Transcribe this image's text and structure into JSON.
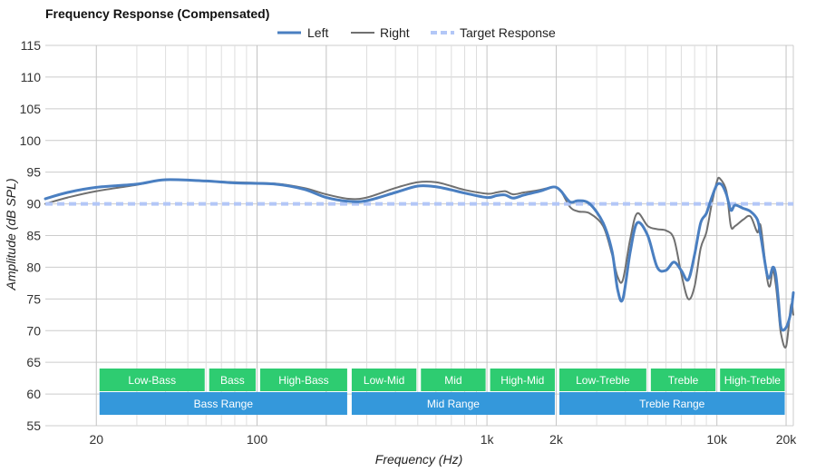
{
  "chart_data": {
    "type": "line",
    "title": "Frequency Response (Compensated)",
    "xlabel": "Frequency (Hz)",
    "ylabel": "Amplitude (dB SPL)",
    "x_scale": "log",
    "xlim": [
      12,
      21500
    ],
    "ylim": [
      55,
      115
    ],
    "grid": true,
    "legend_position": "top-center",
    "y_ticks": [
      55,
      60,
      65,
      70,
      75,
      80,
      85,
      90,
      95,
      100,
      105,
      110,
      115
    ],
    "x_ticks": [
      {
        "value": 20,
        "label": "20"
      },
      {
        "value": 100,
        "label": "100"
      },
      {
        "value": 1000,
        "label": "1k"
      },
      {
        "value": 2000,
        "label": "2k"
      },
      {
        "value": 10000,
        "label": "10k"
      },
      {
        "value": 20000,
        "label": "20k"
      }
    ],
    "series": [
      {
        "name": "Left",
        "color": "#4a7fc1",
        "style": "solid",
        "points": [
          [
            12,
            90.8
          ],
          [
            15,
            91.8
          ],
          [
            20,
            92.6
          ],
          [
            30,
            93.1
          ],
          [
            40,
            93.8
          ],
          [
            60,
            93.6
          ],
          [
            80,
            93.3
          ],
          [
            120,
            93.1
          ],
          [
            160,
            92.3
          ],
          [
            200,
            91.0
          ],
          [
            250,
            90.4
          ],
          [
            300,
            90.5
          ],
          [
            400,
            91.8
          ],
          [
            500,
            92.8
          ],
          [
            600,
            92.7
          ],
          [
            700,
            92.2
          ],
          [
            800,
            91.7
          ],
          [
            1000,
            91.0
          ],
          [
            1100,
            91.3
          ],
          [
            1200,
            91.4
          ],
          [
            1300,
            90.9
          ],
          [
            1450,
            91.4
          ],
          [
            1700,
            92.0
          ],
          [
            1900,
            92.6
          ],
          [
            2000,
            92.6
          ],
          [
            2100,
            92.0
          ],
          [
            2300,
            90.3
          ],
          [
            2500,
            90.5
          ],
          [
            2800,
            90.0
          ],
          [
            3200,
            87.0
          ],
          [
            3500,
            82.5
          ],
          [
            3700,
            76.5
          ],
          [
            3900,
            75.0
          ],
          [
            4200,
            82.5
          ],
          [
            4500,
            87.0
          ],
          [
            5000,
            85.0
          ],
          [
            5500,
            80.0
          ],
          [
            6000,
            79.5
          ],
          [
            6500,
            80.8
          ],
          [
            7000,
            79.5
          ],
          [
            7500,
            78.0
          ],
          [
            8000,
            82.0
          ],
          [
            8500,
            87.0
          ],
          [
            9000,
            88.5
          ],
          [
            9500,
            91.0
          ],
          [
            10000,
            93.0
          ],
          [
            10500,
            93.0
          ],
          [
            11000,
            91.5
          ],
          [
            11500,
            89.0
          ],
          [
            12000,
            89.8
          ],
          [
            13000,
            89.3
          ],
          [
            14000,
            88.8
          ],
          [
            15000,
            87.5
          ],
          [
            15500,
            85.0
          ],
          [
            16500,
            79.0
          ],
          [
            17000,
            78.5
          ],
          [
            17500,
            80.0
          ],
          [
            18000,
            79.0
          ],
          [
            18500,
            75.0
          ],
          [
            19000,
            70.5
          ],
          [
            20000,
            70.5
          ],
          [
            21000,
            73.0
          ],
          [
            21500,
            76.0
          ]
        ]
      },
      {
        "name": "Right",
        "color": "#707070",
        "style": "solid",
        "points": [
          [
            12,
            90.0
          ],
          [
            15,
            91.0
          ],
          [
            20,
            92.0
          ],
          [
            30,
            93.0
          ],
          [
            40,
            93.8
          ],
          [
            60,
            93.6
          ],
          [
            80,
            93.4
          ],
          [
            120,
            93.2
          ],
          [
            160,
            92.5
          ],
          [
            200,
            91.5
          ],
          [
            250,
            90.8
          ],
          [
            300,
            91.0
          ],
          [
            400,
            92.5
          ],
          [
            500,
            93.4
          ],
          [
            600,
            93.4
          ],
          [
            700,
            92.8
          ],
          [
            800,
            92.2
          ],
          [
            1000,
            91.6
          ],
          [
            1100,
            91.8
          ],
          [
            1200,
            92.0
          ],
          [
            1300,
            91.5
          ],
          [
            1450,
            91.8
          ],
          [
            1700,
            92.2
          ],
          [
            1900,
            92.6
          ],
          [
            2000,
            92.6
          ],
          [
            2100,
            92.0
          ],
          [
            2300,
            89.5
          ],
          [
            2500,
            88.8
          ],
          [
            2800,
            88.5
          ],
          [
            3200,
            86.5
          ],
          [
            3500,
            82.0
          ],
          [
            3700,
            78.5
          ],
          [
            3900,
            78.0
          ],
          [
            4200,
            84.5
          ],
          [
            4500,
            88.5
          ],
          [
            5000,
            86.5
          ],
          [
            5500,
            86.0
          ],
          [
            6000,
            85.8
          ],
          [
            6500,
            84.5
          ],
          [
            7000,
            79.0
          ],
          [
            7500,
            75.0
          ],
          [
            8000,
            77.0
          ],
          [
            8500,
            83.0
          ],
          [
            9000,
            85.5
          ],
          [
            9500,
            90.0
          ],
          [
            10000,
            93.5
          ],
          [
            10300,
            94.0
          ],
          [
            11000,
            92.0
          ],
          [
            11500,
            86.5
          ],
          [
            12000,
            86.5
          ],
          [
            13000,
            87.5
          ],
          [
            14000,
            88.0
          ],
          [
            15000,
            85.5
          ],
          [
            15500,
            86.5
          ],
          [
            16500,
            78.5
          ],
          [
            17000,
            77.0
          ],
          [
            17500,
            79.5
          ],
          [
            18000,
            77.5
          ],
          [
            18500,
            73.5
          ],
          [
            19000,
            69.5
          ],
          [
            20000,
            67.5
          ],
          [
            21000,
            74.0
          ],
          [
            21500,
            72.5
          ]
        ]
      },
      {
        "name": "Target Response",
        "color": "#b3c7f7",
        "style": "dashed",
        "points": [
          [
            12,
            90
          ],
          [
            21500,
            90
          ]
        ]
      }
    ],
    "bands_top": [
      {
        "label": "Low-Bass",
        "from": 20,
        "to": 60,
        "color": "#2ecc71"
      },
      {
        "label": "Bass",
        "from": 60,
        "to": 100,
        "color": "#2ecc71"
      },
      {
        "label": "High-Bass",
        "from": 100,
        "to": 250,
        "color": "#2ecc71"
      },
      {
        "label": "Low-Mid",
        "from": 250,
        "to": 500,
        "color": "#2ecc71"
      },
      {
        "label": "Mid",
        "from": 500,
        "to": 1000,
        "color": "#2ecc71"
      },
      {
        "label": "High-Mid",
        "from": 1000,
        "to": 2000,
        "color": "#2ecc71"
      },
      {
        "label": "Low-Treble",
        "from": 2000,
        "to": 5000,
        "color": "#2ecc71"
      },
      {
        "label": "Treble",
        "from": 5000,
        "to": 10000,
        "color": "#2ecc71"
      },
      {
        "label": "High-Treble",
        "from": 10000,
        "to": 20000,
        "color": "#2ecc71"
      }
    ],
    "bands_bottom": [
      {
        "label": "Bass Range",
        "from": 20,
        "to": 250,
        "color": "#3498db"
      },
      {
        "label": "Mid Range",
        "from": 250,
        "to": 2000,
        "color": "#3498db"
      },
      {
        "label": "Treble Range",
        "from": 2000,
        "to": 20000,
        "color": "#3498db"
      }
    ]
  }
}
